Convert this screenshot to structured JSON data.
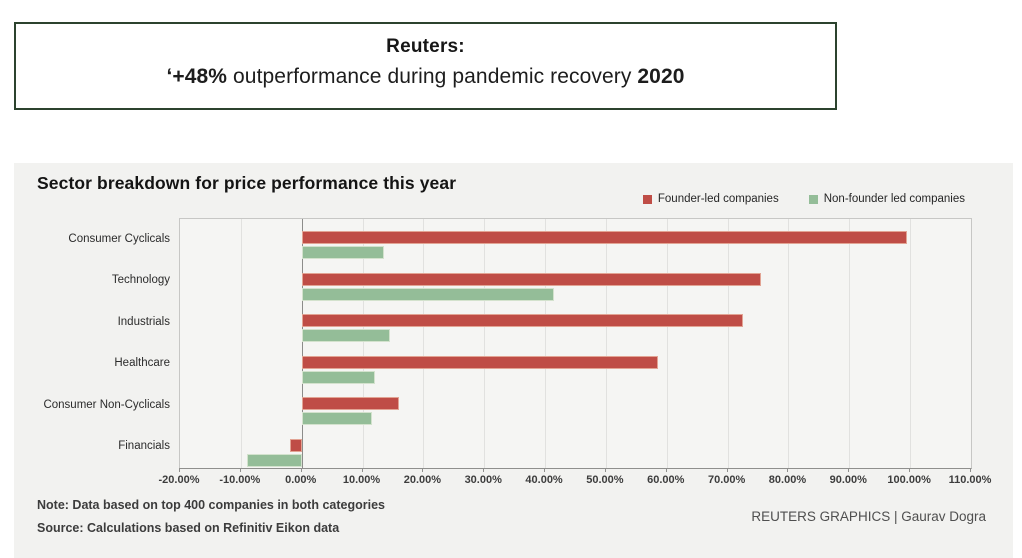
{
  "header": {
    "title": "Reuters:",
    "subtitle_bold_start": "‘+48%",
    "subtitle_mid": " outperformance during pandemic recovery ",
    "subtitle_bold_end": "2020"
  },
  "panel": {
    "title": "Sector breakdown for price performance this year",
    "note": "Note: Data based on top 400 companies in both categories",
    "source": "Source: Calculations based on Refinitiv Eikon data",
    "credit": "REUTERS GRAPHICS | Gaurav Dogra"
  },
  "chart_data": {
    "type": "bar",
    "orientation": "horizontal",
    "title": "Sector breakdown for price performance this year",
    "categories": [
      "Consumer Cyclicals",
      "Technology",
      "Industrials",
      "Healthcare",
      "Consumer Non-Cyclicals",
      "Financials"
    ],
    "series": [
      {
        "name": "Founder-led companies",
        "color": "#bf4d46",
        "border_color": "#e2a494",
        "values": [
          99.5,
          75.5,
          72.5,
          58.5,
          16.0,
          -2.0
        ]
      },
      {
        "name": "Non-founder led companies",
        "color": "#94bd98",
        "border_color": "#d3e2cd",
        "values": [
          13.5,
          41.5,
          14.5,
          12.0,
          11.5,
          -9.0
        ]
      }
    ],
    "value_unit": "percent",
    "xlim": [
      -20,
      110
    ],
    "tick_step": 10,
    "tick_labels": [
      "-20.00%",
      "-10.00%",
      "0.00%",
      "10.00%",
      "20.00%",
      "30.00%",
      "40.00%",
      "50.00%",
      "60.00%",
      "70.00%",
      "80.00%",
      "90.00%",
      "100.00%",
      "110.00%"
    ],
    "grid": true,
    "legend_position": "top-right",
    "xlabel": "",
    "ylabel": ""
  }
}
